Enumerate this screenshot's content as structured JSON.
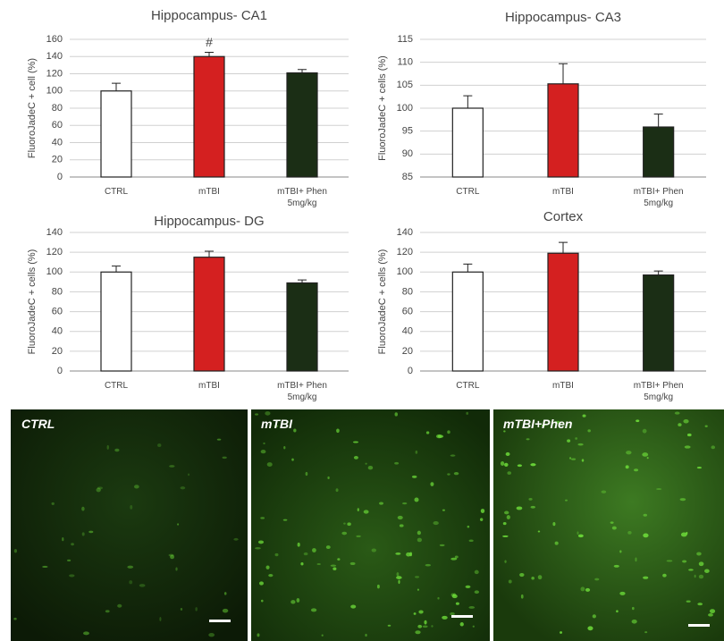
{
  "chart_data": [
    {
      "type": "bar",
      "title": "Hippocampus- CA1",
      "y_label": "FluoroJadeC + cell (%)",
      "categories": [
        "CTRL",
        "mTBI",
        "mTBI+ Phen 5mg/kg"
      ],
      "values": [
        100,
        140,
        121
      ],
      "errors": [
        9,
        5,
        4
      ],
      "colors": [
        "#ffffff",
        "#d42020",
        "#1b2e15"
      ],
      "ylim": [
        0,
        160
      ],
      "yticks": [
        0,
        20,
        40,
        60,
        80,
        100,
        120,
        140,
        160
      ],
      "grid": true,
      "annotations": [
        {
          "category": 1,
          "text": "#"
        }
      ]
    },
    {
      "type": "bar",
      "title": "Hippocampus- CA3",
      "y_label": "FluoroJadeC + cells (%)",
      "categories": [
        "CTRL",
        "mTBI",
        "mTBI+ Phen 5mg/kg"
      ],
      "values": [
        100,
        105.3,
        95.9
      ],
      "errors": [
        2.7,
        4.4,
        2.8
      ],
      "colors": [
        "#ffffff",
        "#d42020",
        "#1b2e15"
      ],
      "ylim": [
        85,
        115
      ],
      "yticks": [
        85,
        90,
        95,
        100,
        105,
        110,
        115
      ],
      "grid": true
    },
    {
      "type": "bar",
      "title": "Hippocampus- DG",
      "y_label": "FluoroJadeC + cells (%)",
      "categories": [
        "CTRL",
        "mTBI",
        "mTBI+ Phen 5mg/kg"
      ],
      "values": [
        100,
        115,
        89
      ],
      "errors": [
        6,
        6,
        3
      ],
      "colors": [
        "#ffffff",
        "#d42020",
        "#1b2e15"
      ],
      "ylim": [
        0,
        140
      ],
      "yticks": [
        0,
        20,
        40,
        60,
        80,
        100,
        120,
        140
      ],
      "grid": true
    },
    {
      "type": "bar",
      "title": "Cortex",
      "y_label": "FluoroJadeC + cells (%)",
      "categories": [
        "CTRL",
        "mTBI",
        "mTBI+ Phen 5mg/kg"
      ],
      "values": [
        100,
        119,
        97
      ],
      "errors": [
        8,
        11,
        4
      ],
      "colors": [
        "#ffffff",
        "#d42020",
        "#1b2e15"
      ],
      "ylim": [
        0,
        140
      ],
      "yticks": [
        0,
        20,
        40,
        60,
        80,
        100,
        120,
        140
      ],
      "grid": true
    }
  ],
  "micrographs": [
    {
      "label": "CTRL"
    },
    {
      "label": "mTBI"
    },
    {
      "label": "mTBI+Phen"
    }
  ]
}
